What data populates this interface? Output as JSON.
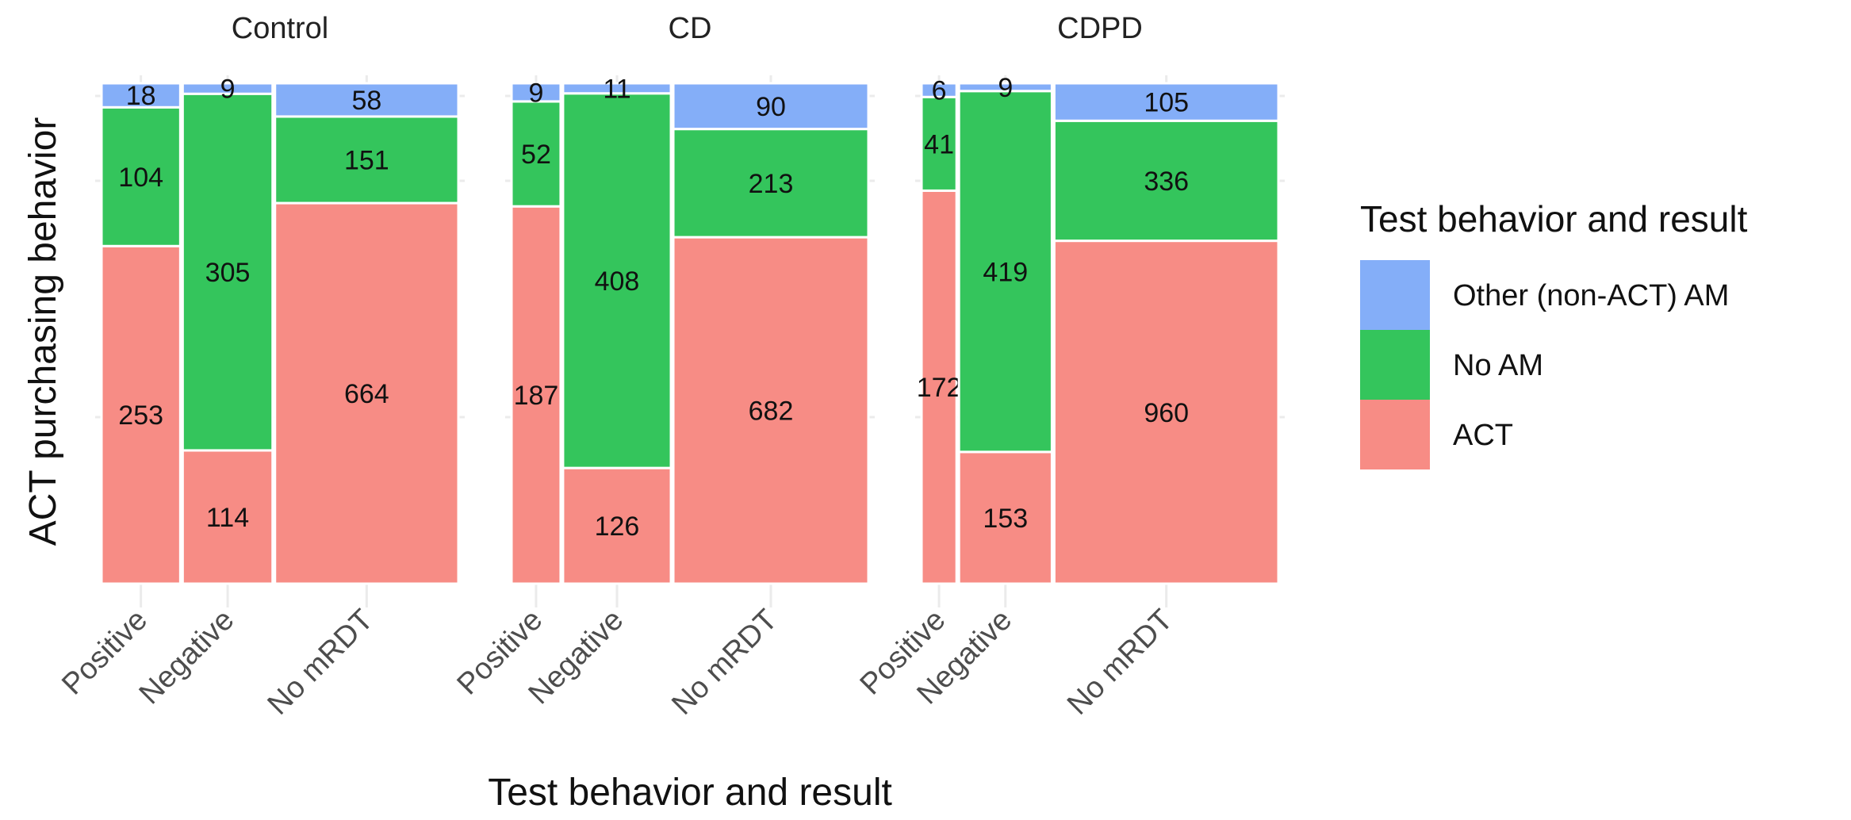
{
  "chart_data": {
    "type": "mosaic",
    "x_categories": [
      "Positive",
      "Negative",
      "No mRDT"
    ],
    "xlabel": "Test behavior and result",
    "ylabel": "ACT purchasing behavior",
    "legend": {
      "title": "Test behavior and result",
      "position": "right",
      "entries": [
        {
          "name": "Other (non-ACT) AM",
          "color": "#84AEF8"
        },
        {
          "name": "No AM",
          "color": "#34C55C"
        },
        {
          "name": "ACT",
          "color": "#F78C85"
        }
      ]
    },
    "stack_order_bottom_to_top": [
      "ACT",
      "No AM",
      "Other (non-ACT) AM"
    ],
    "panels": [
      {
        "title": "Control",
        "counts": {
          "Positive": {
            "ACT": 253,
            "No AM": 104,
            "Other (non-ACT) AM": 18
          },
          "Negative": {
            "ACT": 114,
            "No AM": 305,
            "Other (non-ACT) AM": 9
          },
          "No mRDT": {
            "ACT": 664,
            "No AM": 151,
            "Other (non-ACT) AM": 58
          }
        }
      },
      {
        "title": "CD",
        "counts": {
          "Positive": {
            "ACT": 187,
            "No AM": 52,
            "Other (non-ACT) AM": 9
          },
          "Negative": {
            "ACT": 126,
            "No AM": 408,
            "Other (non-ACT) AM": 11
          },
          "No mRDT": {
            "ACT": 682,
            "No AM": 213,
            "Other (non-ACT) AM": 90
          }
        }
      },
      {
        "title": "CDPD",
        "counts": {
          "Positive": {
            "ACT": 172,
            "No AM": 41,
            "Other (non-ACT) AM": 6
          },
          "Negative": {
            "ACT": 153,
            "No AM": 419,
            "Other (non-ACT) AM": 9
          },
          "No mRDT": {
            "ACT": 960,
            "No AM": 336,
            "Other (non-ACT) AM": 105
          }
        }
      }
    ],
    "grid": true
  }
}
